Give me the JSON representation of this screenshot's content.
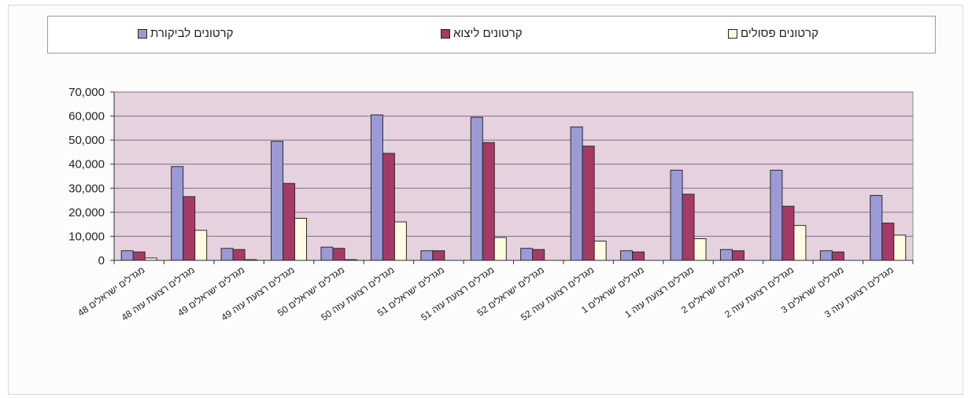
{
  "chart_data": {
    "type": "bar",
    "categories": [
      "מגדלים ישראלים 48",
      "מגדלים רצועת עזה 48",
      "מגדלים ישראלים 49",
      "מגדלים רצועת עזה 49",
      "מגדלים ישראלים 50",
      "מגדלים רצועת עזה 50",
      "מגדלים ישראלים 51",
      "מגדלים רצועת עזה 51",
      "מגדלים ישראלים 52",
      "מגדלים רצועת עזה 52",
      "מגדלים ישראלים 1",
      "מגדלים רצועת עזה 1",
      "מגדלים ישראלים 2",
      "מגדלים רצועת עזה 2",
      "מגדלים ישראלים 3",
      "מגדלים רצועת עזה 3"
    ],
    "series": [
      {
        "name": "קרטונים לביקורת",
        "color": "#9c9ad6",
        "values": [
          4000,
          39000,
          5000,
          49500,
          5500,
          60500,
          4000,
          59500,
          5000,
          55500,
          4000,
          37500,
          4500,
          37500,
          4000,
          27000
        ]
      },
      {
        "name": "קרטונים ליצוא",
        "color": "#a63a66",
        "values": [
          3500,
          26500,
          4500,
          32000,
          5000,
          44500,
          4000,
          49000,
          4500,
          47500,
          3500,
          27500,
          4000,
          22500,
          3500,
          15500
        ]
      },
      {
        "name": "קרטונים פסולים",
        "color": "#fffbe0",
        "values": [
          1000,
          12500,
          300,
          17500,
          300,
          16000,
          0,
          9500,
          0,
          8000,
          0,
          9000,
          0,
          14500,
          0,
          10500
        ]
      }
    ],
    "yticks": [
      "0",
      "10,000",
      "20,000",
      "30,000",
      "40,000",
      "50,000",
      "60,000",
      "70,000"
    ],
    "ylim": [
      0,
      70000
    ],
    "grid": true,
    "legend_position": "top",
    "plot_background": "#e6d2de"
  }
}
